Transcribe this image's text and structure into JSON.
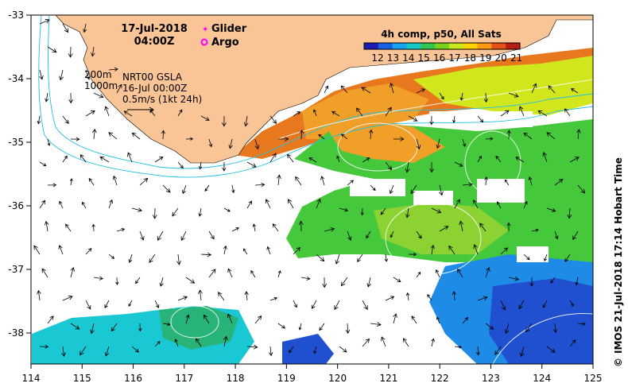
{
  "map": {
    "date": "17-Jul-2018",
    "time": "04:00Z",
    "legend_glider": "Glider",
    "legend_argo": "Argo",
    "contour_200": "200m",
    "contour_1000": "1000m",
    "product": "NRT00 GSLA",
    "product_time": "16-Jul 00:00Z",
    "scale_text": "0.5m/s (1kt 24h)",
    "sst_title": "4h comp, p50, All Sats",
    "sst_ticks": [
      "12",
      "13",
      "14",
      "15",
      "16",
      "17",
      "18",
      "19",
      "20",
      "21"
    ],
    "colorbar_colors": [
      "#1a1ab4",
      "#1a5fe6",
      "#19a3f0",
      "#19c8c8",
      "#32c850",
      "#78d21e",
      "#c8e61e",
      "#ffd200",
      "#ff9a14",
      "#e65014",
      "#b41e14"
    ],
    "credit": "IMOS 21-Jul-2018 17:14 Hobart Time",
    "copyright": "©",
    "lon_ticks": [
      "114",
      "115",
      "116",
      "117",
      "118",
      "119",
      "120",
      "121",
      "122",
      "123",
      "124",
      "125"
    ],
    "lat_ticks": [
      "-33",
      "-34",
      "-35",
      "-36",
      "-37",
      "-38"
    ],
    "colors": {
      "land": "#f9c496",
      "glider": "#ff00ff",
      "argo": "#ff00ff",
      "isobath": "#20c0e0"
    }
  }
}
